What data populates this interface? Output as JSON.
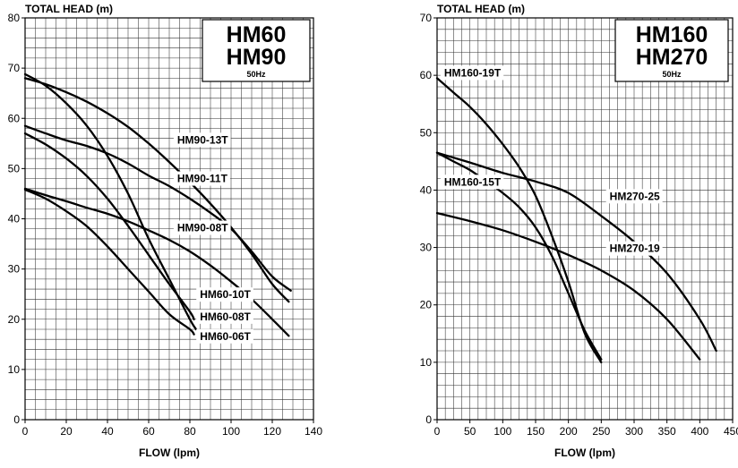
{
  "chart_data": [
    {
      "type": "line",
      "title_lines": [
        "HM60",
        "HM90"
      ],
      "frequency": "50Hz",
      "xlabel": "FLOW (lpm)",
      "ylabel": "TOTAL HEAD (m)",
      "xlim": [
        0,
        140
      ],
      "ylim": [
        0,
        80
      ],
      "xticks": [
        0,
        20,
        40,
        60,
        80,
        100,
        120,
        140
      ],
      "yticks": [
        0,
        10,
        20,
        30,
        40,
        50,
        60,
        70,
        80
      ],
      "grid": true,
      "series": [
        {
          "name": "HM90-13T",
          "x": [
            0,
            10,
            20,
            30,
            40,
            50,
            60,
            70,
            80,
            90,
            100,
            110,
            120,
            128
          ],
          "y": [
            68,
            66.8,
            65.2,
            63.3,
            61,
            58.3,
            55,
            51.3,
            47.3,
            43,
            38.3,
            33,
            27,
            23.5
          ]
        },
        {
          "name": "HM90-11T",
          "x": [
            0,
            10,
            20,
            30,
            40,
            50,
            60,
            70,
            80,
            90,
            100,
            110,
            120,
            129
          ],
          "y": [
            58.5,
            57,
            55.6,
            54.5,
            53,
            51,
            48.6,
            46.5,
            44,
            41.2,
            38,
            33.5,
            28.5,
            25.7
          ]
        },
        {
          "name": "HM90-08T",
          "x": [
            0,
            10,
            20,
            30,
            40,
            50,
            60,
            70,
            80,
            90,
            100,
            110,
            120,
            128
          ],
          "y": [
            46,
            44.7,
            43.5,
            42.2,
            41,
            39.5,
            37.7,
            35.8,
            33.5,
            30.7,
            27.5,
            24,
            20,
            16.7
          ]
        },
        {
          "name": "HM60-10T",
          "x": [
            0,
            10,
            20,
            30,
            40,
            50,
            60,
            70,
            80,
            83
          ],
          "y": [
            68.8,
            66.5,
            63,
            58.5,
            52.5,
            45,
            36,
            28,
            20,
            18
          ]
        },
        {
          "name": "HM60-08T",
          "x": [
            0,
            10,
            20,
            30,
            40,
            50,
            60,
            70,
            80,
            82
          ],
          "y": [
            57,
            54.8,
            52,
            48.5,
            44,
            38.6,
            32.8,
            27,
            21.5,
            20
          ]
        },
        {
          "name": "HM60-06T",
          "x": [
            0,
            10,
            20,
            30,
            40,
            50,
            60,
            70,
            80,
            82
          ],
          "y": [
            45.8,
            44,
            41.5,
            38.5,
            34.5,
            30,
            25.5,
            21,
            18,
            17
          ]
        }
      ],
      "labels": [
        {
          "series": "HM90-13T",
          "text": "HM90-13T",
          "x": 73,
          "y": 55
        },
        {
          "series": "HM90-11T",
          "text": "HM90-11T",
          "x": 73,
          "y": 47.3
        },
        {
          "series": "HM90-08T",
          "text": "HM90-08T",
          "x": 73,
          "y": 37.5
        },
        {
          "series": "HM60-10T",
          "text": "HM60-10T",
          "x": 84,
          "y": 24.2
        },
        {
          "series": "HM60-08T",
          "text": "HM60-08T",
          "x": 84,
          "y": 19.8
        },
        {
          "series": "HM60-06T",
          "text": "HM60-06T",
          "x": 84,
          "y": 15.9
        }
      ]
    },
    {
      "type": "line",
      "title_lines": [
        "HM160",
        "HM270"
      ],
      "frequency": "50Hz",
      "xlabel": "FLOW (lpm)",
      "ylabel": "TOTAL HEAD (m)",
      "xlim": [
        0,
        450
      ],
      "ylim": [
        0,
        70
      ],
      "xticks": [
        0,
        50,
        100,
        150,
        200,
        250,
        300,
        350,
        400,
        450
      ],
      "yticks": [
        0,
        10,
        20,
        30,
        40,
        50,
        60,
        70
      ],
      "grid": true,
      "series": [
        {
          "name": "HM160-19T",
          "x": [
            0,
            25,
            50,
            75,
            100,
            125,
            150,
            175,
            200,
            225,
            250
          ],
          "y": [
            59.5,
            57,
            54.5,
            51.5,
            48,
            44,
            39,
            32,
            24,
            15,
            10
          ]
        },
        {
          "name": "HM160-15T",
          "x": [
            0,
            25,
            50,
            75,
            100,
            125,
            150,
            175,
            200,
            225,
            250
          ],
          "y": [
            46.5,
            45,
            43.5,
            41.5,
            39.5,
            37,
            33.5,
            28.5,
            22,
            15.5,
            10.5
          ]
        },
        {
          "name": "HM270-25",
          "x": [
            0,
            50,
            100,
            150,
            200,
            250,
            300,
            350,
            400,
            425
          ],
          "y": [
            46.5,
            44.8,
            43,
            41.5,
            39.5,
            35.5,
            31,
            25.5,
            17.5,
            12
          ]
        },
        {
          "name": "HM270-19",
          "x": [
            0,
            50,
            100,
            150,
            200,
            250,
            300,
            350,
            400
          ],
          "y": [
            36,
            34.6,
            33,
            31,
            28.7,
            26,
            22.5,
            17.5,
            10.5
          ]
        }
      ],
      "labels": [
        {
          "series": "HM160-19T",
          "text": "HM160-19T",
          "x": 8,
          "y": 59.8
        },
        {
          "series": "HM160-15T",
          "text": "HM160-15T",
          "x": 8,
          "y": 40.8
        },
        {
          "series": "HM270-25",
          "text": "HM270-25",
          "x": 260,
          "y": 38.3
        },
        {
          "series": "HM270-19",
          "text": "HM270-19",
          "x": 260,
          "y": 29.2
        }
      ]
    }
  ]
}
